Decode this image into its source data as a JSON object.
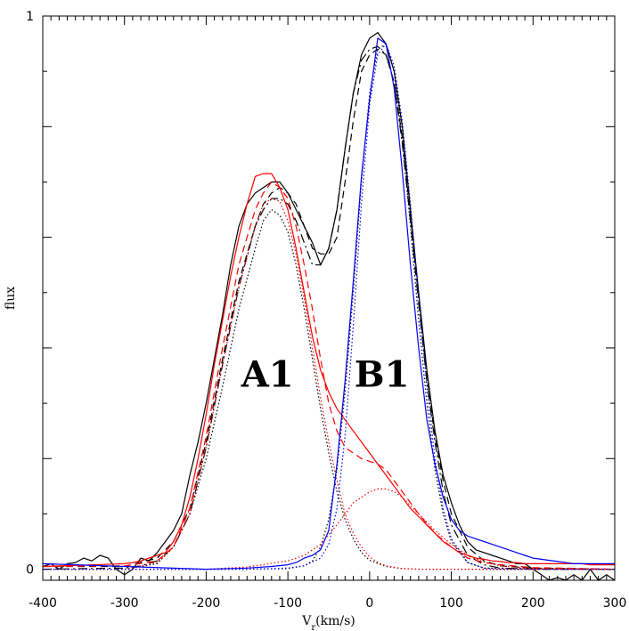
{
  "chart_data": {
    "type": "line",
    "xlabel": "V_r(km/s)",
    "ylabel": "flux",
    "xlim": [
      -400,
      300
    ],
    "ylim": [
      -0.02,
      1.0
    ],
    "x_ticks": [
      "-400",
      "-300",
      "-200",
      "-100",
      "0",
      "100",
      "200",
      "300"
    ],
    "y_ticks": [
      "0",
      "1"
    ],
    "annotations": [
      {
        "text": "A1",
        "x": -125,
        "y": 0.33
      },
      {
        "text": "B1",
        "x": 15,
        "y": 0.33
      }
    ],
    "series": [
      {
        "color": "#000000",
        "style": "solid",
        "x": [
          -400,
          -390,
          -380,
          -370,
          -360,
          -350,
          -340,
          -330,
          -320,
          -310,
          -300,
          -290,
          -280,
          -270,
          -260,
          -250,
          -240,
          -230,
          -220,
          -210,
          -200,
          -190,
          -180,
          -170,
          -160,
          -150,
          -140,
          -130,
          -120,
          -110,
          -100,
          -90,
          -80,
          -70,
          -60,
          -50,
          -40,
          -30,
          -20,
          -10,
          0,
          10,
          20,
          30,
          40,
          50,
          60,
          70,
          80,
          90,
          100,
          110,
          120,
          130,
          140,
          150,
          160,
          170,
          180,
          190,
          200,
          210,
          220,
          230,
          240,
          250,
          260,
          270,
          280,
          290,
          300
        ],
        "y": [
          0.005,
          0.01,
          0.0,
          0.01,
          0.012,
          0.02,
          0.015,
          0.025,
          0.02,
          0.0,
          -0.01,
          0.0,
          0.02,
          0.015,
          0.03,
          0.05,
          0.07,
          0.1,
          0.17,
          0.23,
          0.3,
          0.38,
          0.46,
          0.55,
          0.62,
          0.66,
          0.68,
          0.69,
          0.7,
          0.7,
          0.68,
          0.65,
          0.62,
          0.59,
          0.55,
          0.58,
          0.65,
          0.76,
          0.86,
          0.93,
          0.96,
          0.97,
          0.95,
          0.9,
          0.8,
          0.65,
          0.5,
          0.36,
          0.25,
          0.17,
          0.12,
          0.08,
          0.05,
          0.035,
          0.03,
          0.025,
          0.02,
          0.015,
          0.01,
          0.01,
          0.0,
          -0.01,
          -0.02,
          -0.015,
          -0.02,
          -0.01,
          -0.02,
          0.0,
          -0.02,
          -0.01,
          -0.02
        ]
      },
      {
        "color": "#000000",
        "style": "dashed",
        "x": [
          -400,
          -300,
          -260,
          -240,
          -220,
          -200,
          -180,
          -160,
          -140,
          -130,
          -120,
          -110,
          -100,
          -90,
          -80,
          -70,
          -60,
          -50,
          -40,
          -30,
          -20,
          -10,
          0,
          10,
          20,
          30,
          40,
          50,
          60,
          70,
          80,
          90,
          100,
          120,
          140,
          160,
          200,
          300
        ],
        "y": [
          0.005,
          0.005,
          0.02,
          0.05,
          0.11,
          0.23,
          0.38,
          0.52,
          0.62,
          0.66,
          0.68,
          0.69,
          0.68,
          0.66,
          0.62,
          0.58,
          0.57,
          0.57,
          0.6,
          0.7,
          0.81,
          0.9,
          0.93,
          0.94,
          0.93,
          0.88,
          0.78,
          0.64,
          0.49,
          0.35,
          0.24,
          0.16,
          0.1,
          0.04,
          0.015,
          0.006,
          0.002,
          0.0
        ]
      },
      {
        "color": "#000000",
        "style": "dashdot",
        "x": [
          -400,
          -300,
          -280,
          -260,
          -240,
          -220,
          -200,
          -180,
          -160,
          -140,
          -130,
          -120,
          -110,
          -100,
          -90,
          -80,
          -70,
          -60,
          -50,
          -40,
          -30,
          -20,
          -10,
          0,
          10,
          20,
          30,
          40,
          50,
          60,
          70,
          80,
          90,
          100,
          120,
          140,
          160,
          200,
          300
        ],
        "y": [
          0.0,
          0.002,
          0.006,
          0.015,
          0.04,
          0.1,
          0.22,
          0.37,
          0.51,
          0.62,
          0.65,
          0.67,
          0.67,
          0.66,
          0.63,
          0.59,
          0.55,
          0.55,
          0.58,
          0.65,
          0.76,
          0.86,
          0.92,
          0.94,
          0.945,
          0.93,
          0.88,
          0.77,
          0.63,
          0.48,
          0.34,
          0.23,
          0.14,
          0.08,
          0.025,
          0.008,
          0.002,
          0.0,
          0.0
        ]
      },
      {
        "color": "#000000",
        "style": "dotted",
        "x": [
          -400,
          -300,
          -260,
          -240,
          -220,
          -200,
          -180,
          -160,
          -140,
          -130,
          -120,
          -110,
          -100,
          -90,
          -80,
          -70,
          -60,
          -50,
          -40,
          -30,
          -20,
          -10,
          0,
          20,
          40,
          60,
          100,
          300
        ],
        "y": [
          0.0,
          0.0,
          0.01,
          0.04,
          0.1,
          0.2,
          0.33,
          0.47,
          0.58,
          0.63,
          0.65,
          0.64,
          0.61,
          0.55,
          0.47,
          0.38,
          0.29,
          0.21,
          0.14,
          0.09,
          0.055,
          0.03,
          0.016,
          0.005,
          0.001,
          0.0,
          0.0,
          0.0
        ]
      },
      {
        "color": "#000000",
        "style": "dotted",
        "x": [
          -400,
          -150,
          -100,
          -80,
          -70,
          -60,
          -50,
          -40,
          -30,
          -20,
          -10,
          0,
          10,
          20,
          30,
          40,
          50,
          60,
          70,
          80,
          90,
          100,
          120,
          140,
          300
        ],
        "y": [
          0.0,
          0.0,
          0.001,
          0.006,
          0.015,
          0.04,
          0.09,
          0.18,
          0.32,
          0.5,
          0.7,
          0.86,
          0.94,
          0.95,
          0.9,
          0.78,
          0.62,
          0.45,
          0.3,
          0.18,
          0.1,
          0.05,
          0.012,
          0.002,
          0.0
        ]
      },
      {
        "color": "#ff0000",
        "style": "solid",
        "x": [
          -400,
          -300,
          -290,
          -280,
          -270,
          -260,
          -250,
          -240,
          -230,
          -220,
          -210,
          -200,
          -190,
          -180,
          -170,
          -160,
          -150,
          -140,
          -130,
          -120,
          -110,
          -100,
          -90,
          -80,
          -70,
          -60,
          -50,
          -40,
          -30,
          -20,
          -10,
          0,
          10,
          20,
          30,
          40,
          50,
          60,
          70,
          80,
          90,
          100,
          110,
          120,
          130,
          140,
          150,
          160,
          170,
          180,
          190,
          200,
          210,
          220,
          230,
          240,
          250,
          260,
          270,
          280,
          290,
          300
        ],
        "y": [
          0.005,
          0.01,
          0.012,
          0.015,
          0.02,
          0.025,
          0.03,
          0.05,
          0.08,
          0.13,
          0.2,
          0.28,
          0.37,
          0.45,
          0.53,
          0.6,
          0.66,
          0.71,
          0.715,
          0.715,
          0.69,
          0.65,
          0.58,
          0.5,
          0.42,
          0.36,
          0.32,
          0.29,
          0.27,
          0.25,
          0.23,
          0.21,
          0.19,
          0.17,
          0.15,
          0.13,
          0.11,
          0.095,
          0.08,
          0.065,
          0.05,
          0.04,
          0.03,
          0.025,
          0.02,
          0.018,
          0.015,
          0.014,
          0.012,
          0.012,
          0.01,
          0.01,
          0.01,
          0.01,
          0.01,
          0.01,
          0.01,
          0.01,
          0.008,
          0.008,
          0.008,
          0.008
        ]
      },
      {
        "color": "#ff0000",
        "style": "dashed",
        "x": [
          -400,
          -300,
          -260,
          -240,
          -220,
          -200,
          -180,
          -160,
          -140,
          -130,
          -120,
          -110,
          -100,
          -90,
          -80,
          -70,
          -60,
          -50,
          -40,
          -30,
          -20,
          -10,
          0,
          10,
          20,
          30,
          40,
          60,
          80,
          100,
          120,
          140,
          160,
          200,
          300
        ],
        "y": [
          0.005,
          0.006,
          0.015,
          0.04,
          0.11,
          0.24,
          0.4,
          0.55,
          0.65,
          0.68,
          0.7,
          0.69,
          0.67,
          0.62,
          0.55,
          0.47,
          0.38,
          0.3,
          0.25,
          0.22,
          0.21,
          0.2,
          0.195,
          0.19,
          0.18,
          0.16,
          0.14,
          0.1,
          0.065,
          0.04,
          0.02,
          0.012,
          0.008,
          0.003,
          0.0
        ]
      },
      {
        "color": "#ff0000",
        "style": "dotted",
        "x": [
          -400,
          -300,
          -260,
          -240,
          -220,
          -200,
          -180,
          -160,
          -140,
          -130,
          -120,
          -110,
          -100,
          -90,
          -80,
          -70,
          -60,
          -50,
          -40,
          -30,
          -20,
          -10,
          0,
          10,
          20,
          40,
          60,
          80,
          100,
          120,
          140,
          160,
          200,
          300
        ],
        "y": [
          0.0,
          0.0,
          0.012,
          0.04,
          0.1,
          0.22,
          0.37,
          0.51,
          0.62,
          0.66,
          0.67,
          0.665,
          0.63,
          0.57,
          0.49,
          0.4,
          0.31,
          0.23,
          0.16,
          0.1,
          0.065,
          0.04,
          0.022,
          0.012,
          0.006,
          0.001,
          0.0,
          0.0,
          0.0,
          0.0,
          0.0,
          0.0,
          0.0,
          0.0
        ]
      },
      {
        "color": "#ff0000",
        "style": "dotted",
        "x": [
          -400,
          -200,
          -150,
          -100,
          -80,
          -60,
          -40,
          -20,
          0,
          10,
          20,
          30,
          40,
          60,
          80,
          100,
          120,
          140,
          160,
          200,
          300
        ],
        "y": [
          0.0,
          0.0,
          0.004,
          0.015,
          0.025,
          0.045,
          0.08,
          0.12,
          0.14,
          0.145,
          0.145,
          0.14,
          0.13,
          0.1,
          0.07,
          0.045,
          0.025,
          0.013,
          0.006,
          0.001,
          0.0
        ]
      },
      {
        "color": "#0000ff",
        "style": "solid",
        "x": [
          -400,
          -300,
          -200,
          -150,
          -120,
          -100,
          -90,
          -80,
          -70,
          -60,
          -50,
          -40,
          -30,
          -20,
          -10,
          0,
          10,
          20,
          30,
          40,
          50,
          60,
          70,
          80,
          90,
          100,
          110,
          120,
          130,
          140,
          150,
          160,
          170,
          180,
          190,
          200,
          210,
          220,
          230,
          240,
          250,
          260,
          270,
          280,
          290,
          300
        ],
        "y": [
          0.01,
          0.005,
          0.0,
          0.002,
          0.005,
          0.008,
          0.012,
          0.02,
          0.025,
          0.035,
          0.07,
          0.19,
          0.34,
          0.52,
          0.71,
          0.85,
          0.96,
          0.95,
          0.87,
          0.72,
          0.55,
          0.4,
          0.27,
          0.19,
          0.13,
          0.09,
          0.07,
          0.06,
          0.055,
          0.05,
          0.045,
          0.04,
          0.035,
          0.03,
          0.025,
          0.02,
          0.018,
          0.016,
          0.014,
          0.012,
          0.01,
          0.01,
          0.01,
          0.01,
          0.01,
          0.01
        ]
      },
      {
        "color": "#0000ff",
        "style": "dotted",
        "x": [
          -400,
          -150,
          -100,
          -80,
          -60,
          -50,
          -40,
          -30,
          -20,
          -10,
          0,
          10,
          20,
          30,
          40,
          50,
          60,
          70,
          80,
          90,
          100,
          120,
          140,
          160,
          300
        ],
        "y": [
          0.0,
          0.0,
          0.002,
          0.006,
          0.02,
          0.045,
          0.11,
          0.24,
          0.44,
          0.66,
          0.84,
          0.93,
          0.95,
          0.91,
          0.81,
          0.66,
          0.49,
          0.33,
          0.2,
          0.11,
          0.055,
          0.012,
          0.002,
          0.0,
          0.0
        ]
      }
    ]
  }
}
